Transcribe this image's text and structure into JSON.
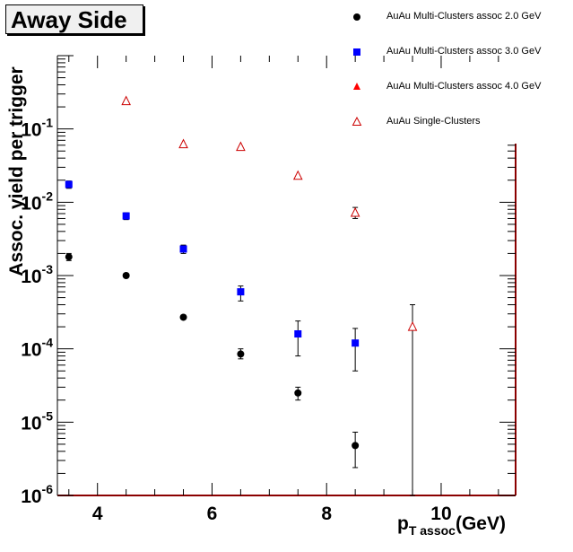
{
  "title_box": "Away Side",
  "chart_data": {
    "type": "scatter",
    "xlabel_main": "p",
    "xlabel_sub": "T assoc",
    "xlabel_unit": "(GeV)",
    "ylabel": "Assoc. yield per trigger",
    "xlim": [
      3.3,
      11.3
    ],
    "ylim": [
      1e-06,
      1
    ],
    "yscale": "log",
    "x_ticks": [
      4,
      6,
      8,
      10
    ],
    "y_ticks": [
      {
        "value": 1e-06,
        "mant": "10",
        "exp": "-6"
      },
      {
        "value": 1e-05,
        "mant": "10",
        "exp": "-5"
      },
      {
        "value": 0.0001,
        "mant": "10",
        "exp": "-4"
      },
      {
        "value": 0.001,
        "mant": "10",
        "exp": "-3"
      },
      {
        "value": 0.01,
        "mant": "10",
        "exp": "-2"
      },
      {
        "value": 0.1,
        "mant": "10",
        "exp": "-1"
      }
    ],
    "legend_position": "top-right",
    "series": [
      {
        "name": "AuAu Multi-Clusters assoc 2.0 GeV",
        "marker": "circle",
        "color": "#000000",
        "points": [
          {
            "x": 3.5,
            "y": 0.0018,
            "lo": 0.0016,
            "hi": 0.002
          },
          {
            "x": 4.5,
            "y": 0.001,
            "lo": 0.00097,
            "hi": 0.00103
          },
          {
            "x": 5.5,
            "y": 0.00027,
            "lo": 0.00026,
            "hi": 0.00028
          },
          {
            "x": 6.5,
            "y": 8.5e-05,
            "lo": 7.3e-05,
            "hi": 0.0001
          },
          {
            "x": 7.5,
            "y": 2.5e-05,
            "lo": 2e-05,
            "hi": 3e-05
          },
          {
            "x": 8.5,
            "y": 4.8e-06,
            "lo": 2.4e-06,
            "hi": 7.3e-06
          }
        ]
      },
      {
        "name": "AuAu Multi-Clusters assoc 3.0 GeV",
        "marker": "square",
        "color": "#0000ff",
        "points": [
          {
            "x": 3.5,
            "y": 0.0175,
            "lo": 0.0155,
            "hi": 0.0195
          },
          {
            "x": 4.5,
            "y": 0.0065,
            "lo": 0.0058,
            "hi": 0.0072
          },
          {
            "x": 5.5,
            "y": 0.0023,
            "lo": 0.002,
            "hi": 0.0026
          },
          {
            "x": 6.5,
            "y": 0.0006,
            "lo": 0.00045,
            "hi": 0.00072
          },
          {
            "x": 7.5,
            "y": 0.00016,
            "lo": 8e-05,
            "hi": 0.00024
          },
          {
            "x": 8.5,
            "y": 0.00012,
            "lo": 5e-05,
            "hi": 0.00019
          }
        ]
      },
      {
        "name": "AuAu Multi-Clusters assoc 4.0 GeV",
        "marker": "triangle-filled",
        "color": "#ff0000",
        "points": []
      },
      {
        "name": "AuAu Single-Clusters",
        "marker": "triangle-open",
        "color": "#cc0000",
        "points": [
          {
            "x": 4.5,
            "y": 0.24
          },
          {
            "x": 5.5,
            "y": 0.062
          },
          {
            "x": 6.5,
            "y": 0.057
          },
          {
            "x": 7.5,
            "y": 0.023
          },
          {
            "x": 8.5,
            "y": 0.0072,
            "lo": 0.006,
            "hi": 0.0085
          },
          {
            "x": 9.5,
            "y": 0.0002,
            "lo": 1e-06,
            "hi": 0.0004
          }
        ]
      }
    ]
  }
}
